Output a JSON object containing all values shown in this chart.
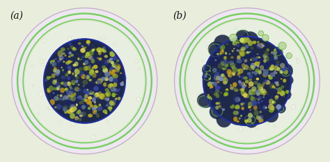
{
  "figsize": [
    4.74,
    2.34
  ],
  "dpi": 100,
  "bg_color": "#e8eddc",
  "label_a": "(a)",
  "label_b": "(b)",
  "label_fontsize": 10,
  "label_color": "#111111",
  "outer_ring_color": "#c8b0cc",
  "zona_line_color": "#78d060",
  "perivitelline_color": "#e8eddc",
  "morula_base_color": "#1e2848",
  "morula_edge_color": "#2a3060",
  "granule_colors": [
    "#90b820",
    "#c8c020",
    "#d0a010",
    "#506890",
    "#3848a0",
    "#a8c030",
    "#e0d050",
    "#709030",
    "#c8e060",
    "#8090c0",
    "#b0b840",
    "#506030"
  ],
  "bleb_fill": "#2a4020",
  "bleb_edge": "#70c050",
  "bubble_fill": "#f0f4e8",
  "bubble_edge": "#c0cca0"
}
